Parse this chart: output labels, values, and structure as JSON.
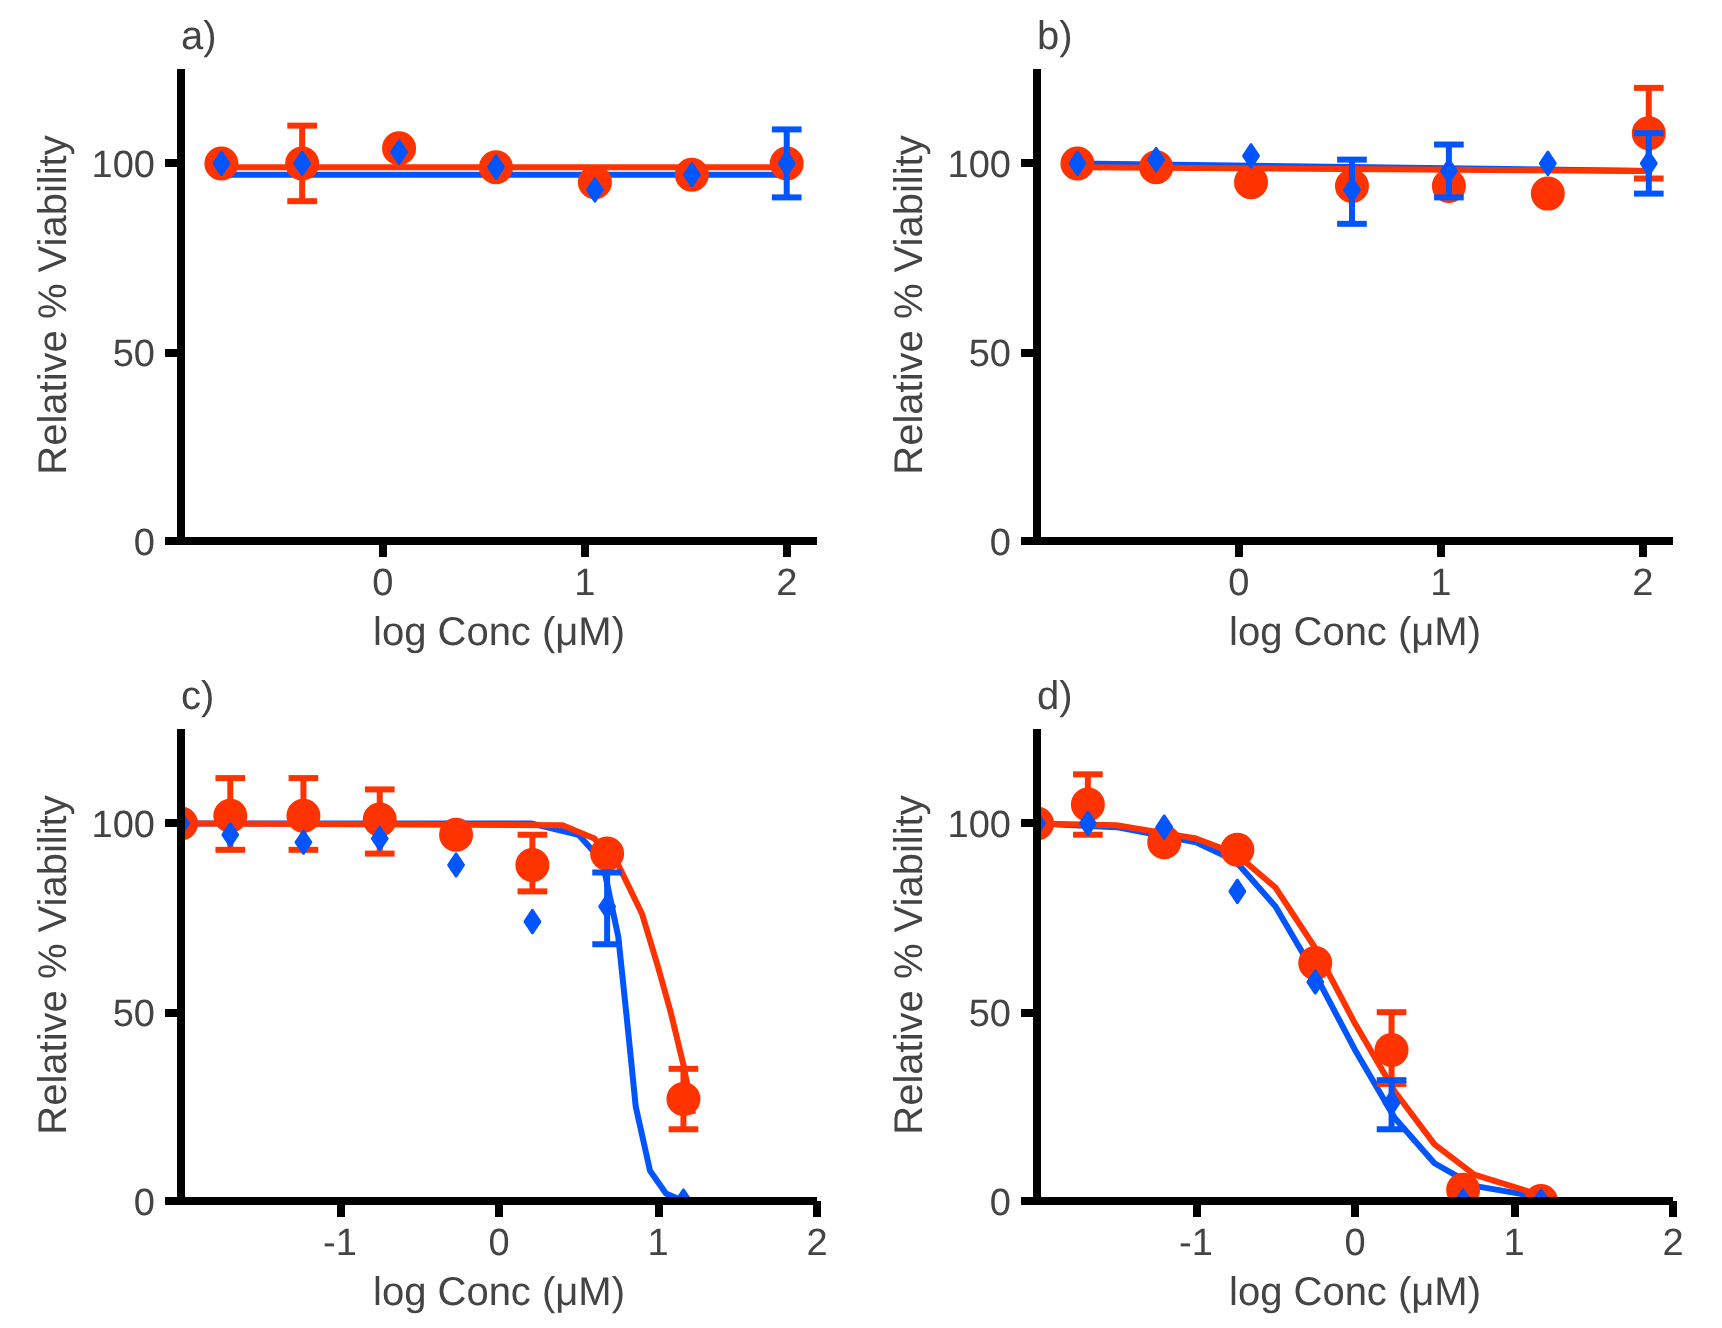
{
  "chart_data": [
    {
      "type": "scatter",
      "title": "a)",
      "xlabel": "log Conc (μM)",
      "ylabel": "Relative % Viability",
      "xlim": [
        -1,
        2.15
      ],
      "ylim": [
        0,
        125
      ],
      "xticks": [
        0,
        1,
        2
      ],
      "yticks": [
        0,
        50,
        100
      ],
      "series": [
        {
          "type": "line",
          "color": "#0055ff",
          "x": [
            -0.8,
            2.0
          ],
          "values": [
            97,
            97
          ]
        },
        {
          "type": "line",
          "color": "#ff3300",
          "x": [
            -0.8,
            2.0
          ],
          "values": [
            99,
            99
          ]
        },
        {
          "color": "#0055ff",
          "marker": "diamond",
          "x": [
            -0.8,
            -0.4,
            0.08,
            0.56,
            1.05,
            1.53,
            2.0
          ],
          "values": [
            100,
            100,
            103,
            99,
            93,
            97,
            100
          ],
          "errors": [
            null,
            null,
            null,
            null,
            null,
            null,
            [
              91,
              109
            ]
          ]
        },
        {
          "color": "#ff3300",
          "marker": "circle",
          "x": [
            -0.8,
            -0.4,
            0.08,
            0.56,
            1.05,
            1.53,
            2.0
          ],
          "values": [
            100,
            100,
            104,
            99,
            95,
            97,
            100
          ],
          "errors": [
            null,
            [
              90,
              110
            ],
            null,
            null,
            null,
            null,
            null
          ]
        }
      ]
    },
    {
      "type": "scatter",
      "title": "b)",
      "xlabel": "log Conc (μM)",
      "ylabel": "Relative % Viability",
      "xlim": [
        -1,
        2.15
      ],
      "ylim": [
        0,
        125
      ],
      "xticks": [
        0,
        1,
        2
      ],
      "yticks": [
        0,
        50,
        100
      ],
      "series": [
        {
          "type": "line",
          "color": "#0055ff",
          "x": [
            -0.8,
            2.03
          ],
          "values": [
            100,
            98
          ]
        },
        {
          "type": "line",
          "color": "#ff3300",
          "x": [
            -0.8,
            2.03
          ],
          "values": [
            99,
            98
          ]
        },
        {
          "color": "#0055ff",
          "marker": "diamond",
          "x": [
            -0.8,
            -0.41,
            0.06,
            0.56,
            1.04,
            1.53,
            2.03
          ],
          "values": [
            100,
            101,
            102,
            93,
            98,
            100,
            100
          ],
          "errors": [
            null,
            null,
            null,
            [
              84,
              101
            ],
            [
              91,
              105
            ],
            null,
            [
              92,
              108
            ]
          ]
        },
        {
          "color": "#ff3300",
          "marker": "circle",
          "x": [
            -0.8,
            -0.41,
            0.06,
            0.56,
            1.04,
            1.53,
            2.03
          ],
          "values": [
            100,
            99,
            95,
            94,
            94,
            92,
            108
          ],
          "errors": [
            null,
            null,
            null,
            null,
            null,
            null,
            [
              96,
              120
            ]
          ]
        }
      ]
    },
    {
      "type": "scatter",
      "title": "c)",
      "xlabel": "log Conc (μM)",
      "ylabel": "Relative % Viability",
      "xlim": [
        -2,
        2
      ],
      "ylim": [
        0,
        125
      ],
      "xticks": [
        -1,
        0,
        1,
        2
      ],
      "yticks": [
        0,
        50,
        100
      ],
      "series": [
        {
          "type": "line",
          "color": "#0055ff",
          "x": [
            -2,
            0.2,
            0.5,
            0.65,
            0.75,
            0.8,
            0.86,
            0.95,
            1.05,
            1.16
          ],
          "values": [
            100,
            100,
            97,
            90,
            70,
            50,
            25,
            8,
            2,
            0
          ]
        },
        {
          "type": "line",
          "color": "#ff3300",
          "x": [
            -2,
            0.4,
            0.6,
            0.75,
            0.9,
            1.0,
            1.08,
            1.16,
            1.22
          ],
          "values": [
            100,
            99.5,
            96,
            89,
            76,
            62,
            50,
            36,
            23
          ]
        },
        {
          "color": "#0055ff",
          "marker": "diamond",
          "x": [
            -2.0,
            -1.69,
            -1.23,
            -0.75,
            -0.27,
            0.21,
            0.68,
            1.16
          ],
          "values": [
            100,
            97,
            95,
            96,
            89,
            74,
            78,
            0
          ],
          "errors": [
            null,
            null,
            null,
            null,
            null,
            null,
            [
              68,
              87
            ],
            null
          ]
        },
        {
          "color": "#ff3300",
          "marker": "circle",
          "x": [
            -2.0,
            -1.69,
            -1.23,
            -0.75,
            -0.27,
            0.21,
            0.68,
            1.16
          ],
          "values": [
            100,
            102,
            102,
            101,
            97,
            89,
            92,
            27
          ],
          "errors": [
            null,
            [
              93,
              112
            ],
            [
              93,
              112
            ],
            [
              92,
              109
            ],
            null,
            [
              82,
              97
            ],
            null,
            [
              19,
              35
            ]
          ]
        }
      ]
    },
    {
      "type": "scatter",
      "title": "d)",
      "xlabel": "log Conc (μM)",
      "ylabel": "Relative % Viability",
      "xlim": [
        -2,
        2
      ],
      "ylim": [
        0,
        125
      ],
      "xticks": [
        -1,
        0,
        1,
        2
      ],
      "yticks": [
        0,
        50,
        100
      ],
      "series": [
        {
          "type": "line",
          "color": "#0055ff",
          "x": [
            -2,
            -1.5,
            -1,
            -0.75,
            -0.5,
            -0.25,
            0,
            0.25,
            0.5,
            0.75,
            1.17
          ],
          "values": [
            100,
            99,
            95,
            90,
            78,
            60,
            40,
            22,
            10,
            4,
            1
          ]
        },
        {
          "type": "line",
          "color": "#ff3300",
          "x": [
            -2,
            -1.5,
            -1,
            -0.75,
            -0.5,
            -0.25,
            0,
            0.25,
            0.5,
            0.75,
            1.17
          ],
          "values": [
            100,
            99.5,
            96,
            92,
            83,
            67,
            47,
            29,
            15,
            7,
            1.5
          ]
        },
        {
          "color": "#0055ff",
          "marker": "diamond",
          "x": [
            -2.0,
            -1.68,
            -1.2,
            -0.74,
            -0.25,
            0.23,
            0.68,
            1.17
          ],
          "values": [
            100,
            100,
            99,
            82,
            58,
            26,
            0,
            0
          ],
          "errors": [
            null,
            null,
            null,
            null,
            null,
            [
              19,
              32
            ],
            null,
            null
          ]
        },
        {
          "color": "#ff3300",
          "marker": "circle",
          "x": [
            -2.0,
            -1.68,
            -1.2,
            -0.74,
            -0.25,
            0.23,
            0.68,
            1.17
          ],
          "values": [
            100,
            105,
            95,
            93,
            63,
            40,
            3,
            0
          ],
          "errors": [
            null,
            [
              97,
              113
            ],
            null,
            null,
            null,
            [
              31,
              50
            ],
            null,
            null
          ]
        }
      ]
    }
  ]
}
